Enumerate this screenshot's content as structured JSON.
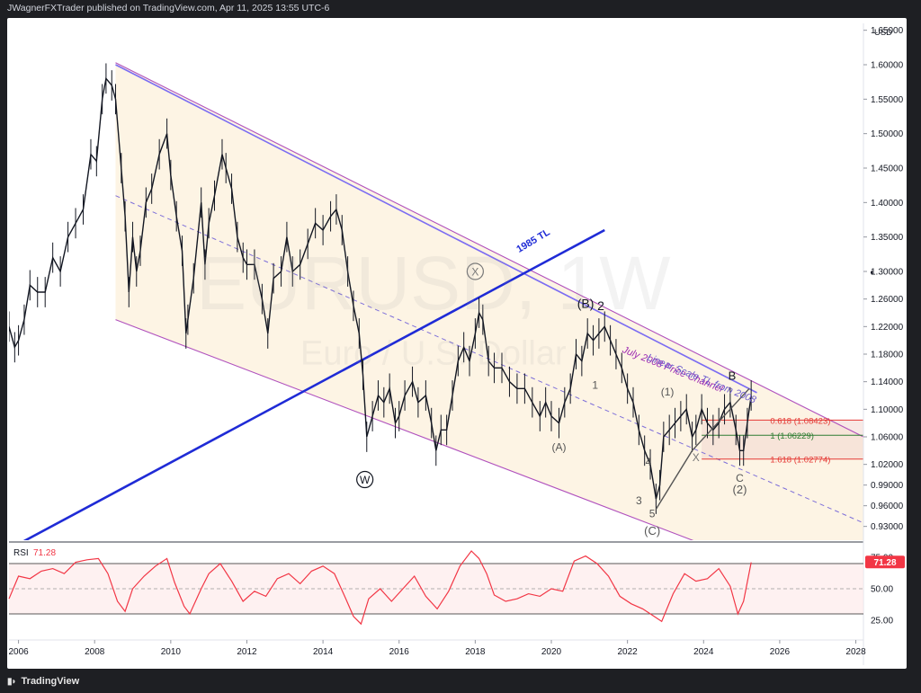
{
  "header": {
    "publisher": "JWagnerFXTrader published on TradingView.com, Apr 11, 2025 13:55 UTC-6"
  },
  "footer": {
    "brand": "TradingView"
  },
  "colors": {
    "up": "#26a69a",
    "down": "#ef5350",
    "candle": "#131722",
    "channel": "#9c27b0",
    "trend1985": "#1f2bd6",
    "rsi": "#f23645",
    "linear_tl": "#7b6cf2"
  },
  "chart_data": [
    {
      "type": "line",
      "title": "EURUSD, 1W",
      "subtitle": "Euro / U.S. Dollar",
      "currency": "USD",
      "y_scale": "linear",
      "ylim": [
        0.91,
        1.66
      ],
      "y_ticks": [
        "1.65000",
        "1.60000",
        "1.55000",
        "1.50000",
        "1.45000",
        "1.40000",
        "1.35000",
        "1.30000",
        "1.26000",
        "1.22000",
        "1.18000",
        "1.14000",
        "1.10000",
        "1.06000",
        "1.02000",
        "0.99000",
        "0.96000",
        "0.93000"
      ],
      "x_ticks": [
        "2006",
        "2008",
        "2010",
        "2012",
        "2014",
        "2016",
        "2018",
        "2020",
        "2022",
        "2024",
        "2026",
        "2028"
      ],
      "xlim": [
        2005.75,
        2028.2
      ],
      "series": [
        {
          "name": "",
          "x": [
            2005.75,
            2005.9,
            2006.0,
            2006.15,
            2006.3,
            2006.5,
            2006.7,
            2006.9,
            2007.1,
            2007.3,
            2007.5,
            2007.7,
            2007.9,
            2008.05,
            2008.2,
            2008.3,
            2008.45,
            2008.55,
            2008.7,
            2008.8,
            2008.9,
            2009.0,
            2009.1,
            2009.2,
            2009.35,
            2009.5,
            2009.7,
            2009.9,
            2010.0,
            2010.15,
            2010.3,
            2010.4,
            2010.45,
            2010.6,
            2010.8,
            2010.9,
            2011.0,
            2011.15,
            2011.35,
            2011.45,
            2011.6,
            2011.75,
            2011.9,
            2012.0,
            2012.2,
            2012.4,
            2012.55,
            2012.7,
            2012.9,
            2013.05,
            2013.2,
            2013.4,
            2013.6,
            2013.8,
            2014.0,
            2014.2,
            2014.35,
            2014.5,
            2014.65,
            2014.8,
            2014.95,
            2015.05,
            2015.15,
            2015.3,
            2015.45,
            2015.6,
            2015.75,
            2015.9,
            2016.0,
            2016.15,
            2016.35,
            2016.5,
            2016.7,
            2016.85,
            2016.97,
            2017.1,
            2017.25,
            2017.4,
            2017.55,
            2017.7,
            2017.85,
            2018.0,
            2018.1,
            2018.2,
            2018.35,
            2018.5,
            2018.7,
            2018.9,
            2019.1,
            2019.3,
            2019.5,
            2019.7,
            2019.85,
            2020.0,
            2020.2,
            2020.35,
            2020.5,
            2020.65,
            2020.8,
            2020.95,
            2021.1,
            2021.25,
            2021.4,
            2021.55,
            2021.7,
            2021.85,
            2022.0,
            2022.15,
            2022.3,
            2022.45,
            2022.6,
            2022.75,
            2022.85,
            2022.95,
            2023.1,
            2023.25,
            2023.4,
            2023.55,
            2023.7,
            2023.8,
            2023.95,
            2024.1,
            2024.25,
            2024.4,
            2024.55,
            2024.7,
            2024.85,
            2024.95,
            2025.05,
            2025.15,
            2025.25
          ],
          "y": [
            1.22,
            1.19,
            1.2,
            1.23,
            1.28,
            1.27,
            1.27,
            1.32,
            1.3,
            1.35,
            1.37,
            1.39,
            1.47,
            1.46,
            1.55,
            1.58,
            1.57,
            1.55,
            1.45,
            1.38,
            1.27,
            1.35,
            1.3,
            1.33,
            1.4,
            1.42,
            1.47,
            1.5,
            1.44,
            1.38,
            1.33,
            1.21,
            1.23,
            1.29,
            1.4,
            1.31,
            1.37,
            1.41,
            1.47,
            1.45,
            1.42,
            1.35,
            1.32,
            1.31,
            1.31,
            1.26,
            1.21,
            1.29,
            1.3,
            1.35,
            1.3,
            1.31,
            1.34,
            1.37,
            1.36,
            1.38,
            1.39,
            1.36,
            1.3,
            1.25,
            1.21,
            1.15,
            1.06,
            1.09,
            1.12,
            1.11,
            1.13,
            1.08,
            1.09,
            1.12,
            1.14,
            1.11,
            1.12,
            1.08,
            1.04,
            1.07,
            1.07,
            1.12,
            1.17,
            1.19,
            1.17,
            1.21,
            1.24,
            1.23,
            1.17,
            1.16,
            1.16,
            1.14,
            1.13,
            1.13,
            1.11,
            1.09,
            1.11,
            1.09,
            1.08,
            1.11,
            1.13,
            1.18,
            1.17,
            1.21,
            1.2,
            1.21,
            1.22,
            1.2,
            1.18,
            1.16,
            1.13,
            1.11,
            1.07,
            1.04,
            1.02,
            0.97,
            0.99,
            1.06,
            1.07,
            1.08,
            1.09,
            1.1,
            1.06,
            1.07,
            1.1,
            1.08,
            1.07,
            1.08,
            1.1,
            1.11,
            1.07,
            1.04,
            1.04,
            1.08,
            1.12
          ]
        }
      ],
      "guides": [
        {
          "label": "0.618 (1.08423)",
          "value": 1.08423,
          "color": "#e53935"
        },
        {
          "label": "1 (1.06229)",
          "value": 1.06229,
          "color": "#2e7d32"
        },
        {
          "label": "1.618 (1.02774)",
          "value": 1.02774,
          "color": "#e53935"
        }
      ],
      "annotations": {
        "watermark_symbol": "EURUSD, 1W",
        "watermark_name": "Euro / U.S. Dollar",
        "trend_1985": "1985 TL",
        "channel_2008": "July 2008 Price Channel",
        "linear_tl": "Linear Scale TL from 2008",
        "wave_labels": [
          "(B)",
          "2",
          "1",
          "(1)",
          "B",
          "C",
          "(2)",
          "(A)",
          "3",
          "4",
          "5",
          "(C)",
          "W",
          "X",
          "X"
        ]
      }
    },
    {
      "type": "line",
      "title": "RSI",
      "current_value": "71.28",
      "ylim": [
        10,
        85
      ],
      "y_ticks": [
        "75.00",
        "50.00",
        "25.00"
      ],
      "bands": [
        70,
        30
      ],
      "series": [
        {
          "name": "",
          "x": [
            2005.75,
            2006.0,
            2006.3,
            2006.6,
            2006.9,
            2007.2,
            2007.5,
            2007.8,
            2008.1,
            2008.35,
            2008.6,
            2008.8,
            2009.0,
            2009.3,
            2009.6,
            2009.9,
            2010.1,
            2010.35,
            2010.5,
            2010.8,
            2011.0,
            2011.3,
            2011.6,
            2011.9,
            2012.2,
            2012.5,
            2012.8,
            2013.1,
            2013.4,
            2013.7,
            2014.0,
            2014.3,
            2014.6,
            2014.8,
            2015.0,
            2015.2,
            2015.5,
            2015.8,
            2016.1,
            2016.4,
            2016.7,
            2017.0,
            2017.3,
            2017.6,
            2017.9,
            2018.1,
            2018.3,
            2018.5,
            2018.8,
            2019.1,
            2019.4,
            2019.7,
            2020.0,
            2020.3,
            2020.6,
            2020.9,
            2021.2,
            2021.5,
            2021.8,
            2022.1,
            2022.4,
            2022.7,
            2022.9,
            2023.2,
            2023.5,
            2023.8,
            2024.1,
            2024.4,
            2024.7,
            2024.9,
            2025.05,
            2025.25
          ],
          "y": [
            42,
            60,
            58,
            64,
            66,
            62,
            71,
            73,
            74,
            62,
            40,
            32,
            50,
            60,
            68,
            74,
            55,
            36,
            30,
            50,
            62,
            70,
            56,
            40,
            48,
            44,
            58,
            62,
            54,
            64,
            68,
            62,
            42,
            28,
            22,
            42,
            50,
            40,
            50,
            60,
            44,
            34,
            48,
            68,
            80,
            74,
            62,
            45,
            40,
            42,
            46,
            44,
            50,
            48,
            72,
            76,
            70,
            60,
            44,
            38,
            34,
            28,
            24,
            46,
            62,
            56,
            58,
            66,
            52,
            30,
            40,
            71
          ]
        }
      ]
    }
  ]
}
